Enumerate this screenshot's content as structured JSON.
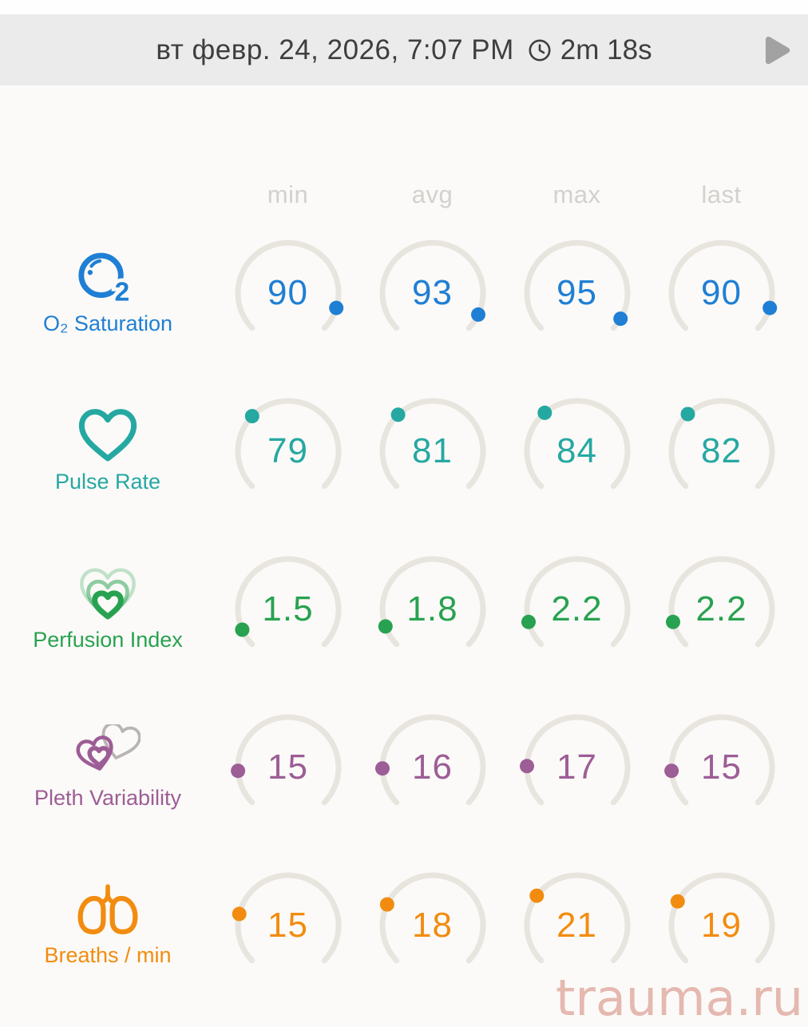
{
  "header": {
    "date": "вт февр. 24, 2026, 7:07 PM",
    "duration": "2m 18s",
    "clock_icon": "clock-icon",
    "play_icon": "play-icon",
    "bar_color": "#ebebeb",
    "text_color": "#3e3e3e",
    "play_color": "#a2a2a2"
  },
  "columns": [
    "min",
    "avg",
    "max",
    "last"
  ],
  "gauge": {
    "arc_color": "#e8e5df",
    "start_angle": 224,
    "sweep": 268,
    "dot_radius": 9
  },
  "metrics": [
    {
      "label": "O₂ Saturation",
      "icon": "o2-icon",
      "color": "#1f7fd4",
      "range_max": 100,
      "numeric": [
        90,
        93,
        95,
        90
      ],
      "values": {
        "min": "90",
        "avg": "93",
        "max": "95",
        "last": "90"
      }
    },
    {
      "label": "Pulse Rate",
      "icon": "heart-icon",
      "color": "#26a8a2",
      "range_max": 240,
      "numeric": [
        79,
        81,
        84,
        82
      ],
      "values": {
        "min": "79",
        "avg": "81",
        "max": "84",
        "last": "82"
      }
    },
    {
      "label": "Perfusion Index",
      "icon": "perfusion-hearts-icon",
      "color": "#28a250",
      "range_max": 20,
      "numeric": [
        1.5,
        1.8,
        2.2,
        2.2
      ],
      "values": {
        "min": "1.5",
        "avg": "1.8",
        "max": "2.2",
        "last": "2.2"
      }
    },
    {
      "label": "Pleth Variability",
      "icon": "pleth-hearts-icon",
      "color": "#9d5d96",
      "range_max": 100,
      "numeric": [
        15,
        16,
        17,
        15
      ],
      "values": {
        "min": "15",
        "avg": "16",
        "max": "17",
        "last": "15"
      }
    },
    {
      "label": "Breaths / min",
      "icon": "lungs-icon",
      "color": "#f28c10",
      "range_max": 70,
      "numeric": [
        15,
        18,
        21,
        19
      ],
      "values": {
        "min": "15",
        "avg": "18",
        "max": "21",
        "last": "19"
      }
    }
  ],
  "watermark": {
    "text": "trauma.ru",
    "color": "rgba(198,94,76,0.42)"
  }
}
